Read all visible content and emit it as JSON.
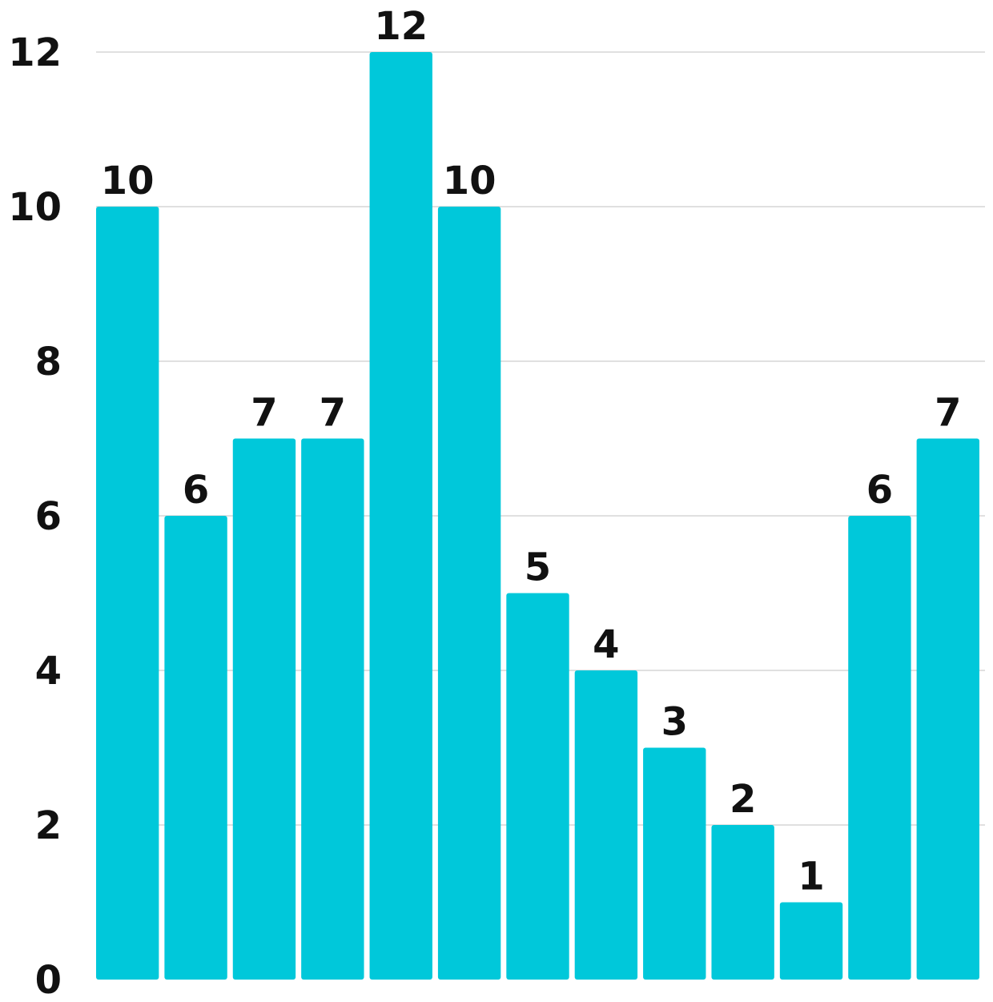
{
  "chart_data": {
    "type": "bar",
    "categories": [
      "",
      "",
      "",
      "",
      "",
      "",
      "",
      "",
      "",
      "",
      "",
      "",
      ""
    ],
    "values": [
      10,
      6,
      7,
      7,
      12,
      10,
      5,
      4,
      3,
      2,
      1,
      6,
      7
    ],
    "data_labels": [
      "10",
      "6",
      "7",
      "7",
      "12",
      "10",
      "5",
      "4",
      "3",
      "2",
      "1",
      "6",
      "7"
    ],
    "y_ticks": [
      0,
      2,
      4,
      6,
      8,
      10,
      12
    ],
    "y_tick_labels": [
      "0",
      "2",
      "4",
      "6",
      "8",
      "10",
      "12"
    ],
    "ylim": [
      0,
      12
    ],
    "grid": true,
    "title": "",
    "xlabel": "",
    "ylabel": "",
    "colors": {
      "bar": "#00c8da",
      "grid": "#d6d6d6",
      "text": "#111111"
    }
  }
}
